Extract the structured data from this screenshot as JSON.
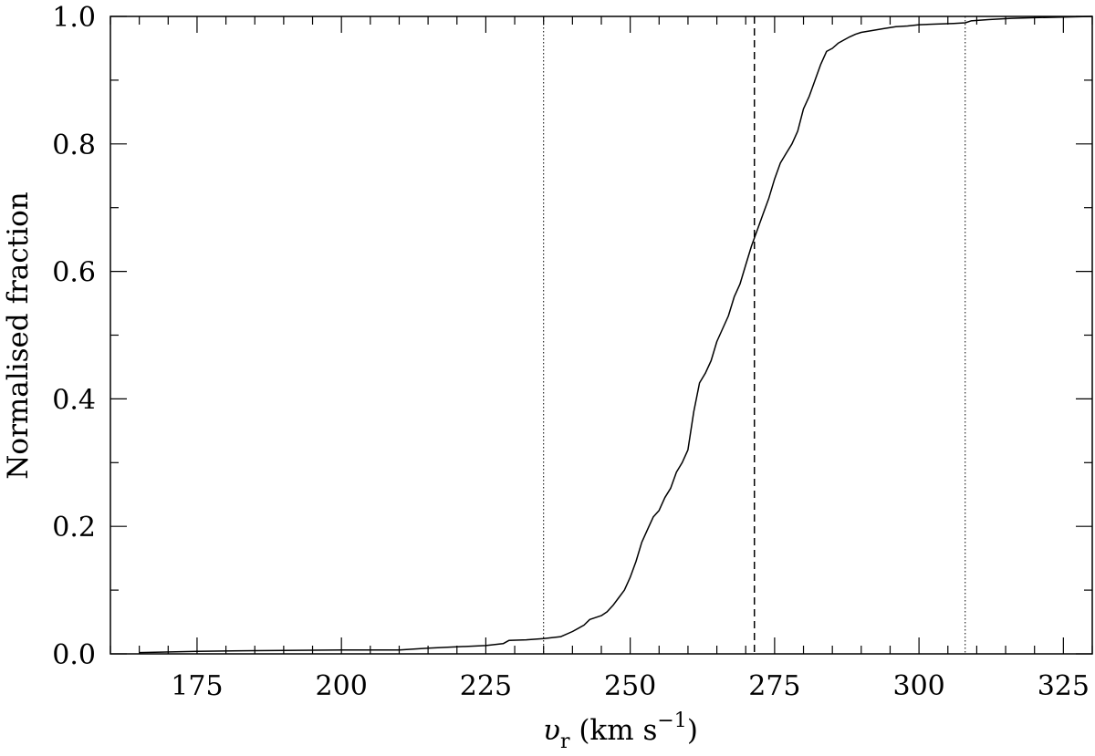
{
  "chart_data": {
    "type": "line",
    "title": "",
    "xlabel": {
      "main": "υ",
      "sub": "r",
      "unit_open": " (km s",
      "sup": "−1",
      "unit_close": ")"
    },
    "ylabel": "Normalised fraction",
    "xlim": [
      160,
      330
    ],
    "ylim": [
      0,
      1
    ],
    "x_ticks": [
      175,
      200,
      225,
      250,
      275,
      300,
      325
    ],
    "x_tick_labels": [
      "175",
      "200",
      "225",
      "250",
      "275",
      "300",
      "325"
    ],
    "y_ticks": [
      0,
      0.2,
      0.4,
      0.6,
      0.8,
      1.0
    ],
    "y_tick_labels": [
      "0.0",
      "0.2",
      "0.4",
      "0.6",
      "0.8",
      "1.0"
    ],
    "series": [
      {
        "style": "solid",
        "x": [
          165,
          175,
          185,
          200,
          210,
          215,
          220,
          225,
          228,
          229,
          232,
          235,
          238,
          240,
          242,
          243,
          245,
          246,
          247,
          248,
          249,
          250,
          251,
          252,
          253,
          254,
          255,
          256,
          257,
          258,
          259,
          260,
          261,
          262,
          263,
          264,
          265,
          266,
          267,
          268,
          269,
          270,
          271,
          272,
          273,
          274,
          275,
          276,
          277,
          278,
          279,
          280,
          281,
          282,
          283,
          284,
          285,
          286,
          287,
          288,
          289,
          290,
          292,
          294,
          296,
          298,
          300,
          303,
          306,
          308,
          309,
          312,
          316,
          320,
          325,
          330
        ],
        "y": [
          0.002,
          0.004,
          0.005,
          0.006,
          0.006,
          0.009,
          0.011,
          0.013,
          0.016,
          0.021,
          0.022,
          0.024,
          0.027,
          0.035,
          0.045,
          0.054,
          0.06,
          0.066,
          0.076,
          0.088,
          0.1,
          0.12,
          0.145,
          0.175,
          0.195,
          0.215,
          0.225,
          0.245,
          0.26,
          0.285,
          0.3,
          0.32,
          0.38,
          0.425,
          0.44,
          0.46,
          0.49,
          0.51,
          0.53,
          0.56,
          0.58,
          0.61,
          0.64,
          0.665,
          0.69,
          0.715,
          0.745,
          0.77,
          0.785,
          0.8,
          0.82,
          0.855,
          0.875,
          0.9,
          0.925,
          0.945,
          0.95,
          0.958,
          0.963,
          0.968,
          0.972,
          0.975,
          0.978,
          0.981,
          0.984,
          0.985,
          0.987,
          0.988,
          0.989,
          0.99,
          0.993,
          0.995,
          0.997,
          0.998,
          0.999,
          1.0
        ]
      }
    ],
    "vertical_lines": [
      {
        "x": 235,
        "style": "dotted"
      },
      {
        "x": 271.5,
        "style": "dashed"
      },
      {
        "x": 308,
        "style": "dotted"
      }
    ],
    "grid": false,
    "legend": "none"
  }
}
